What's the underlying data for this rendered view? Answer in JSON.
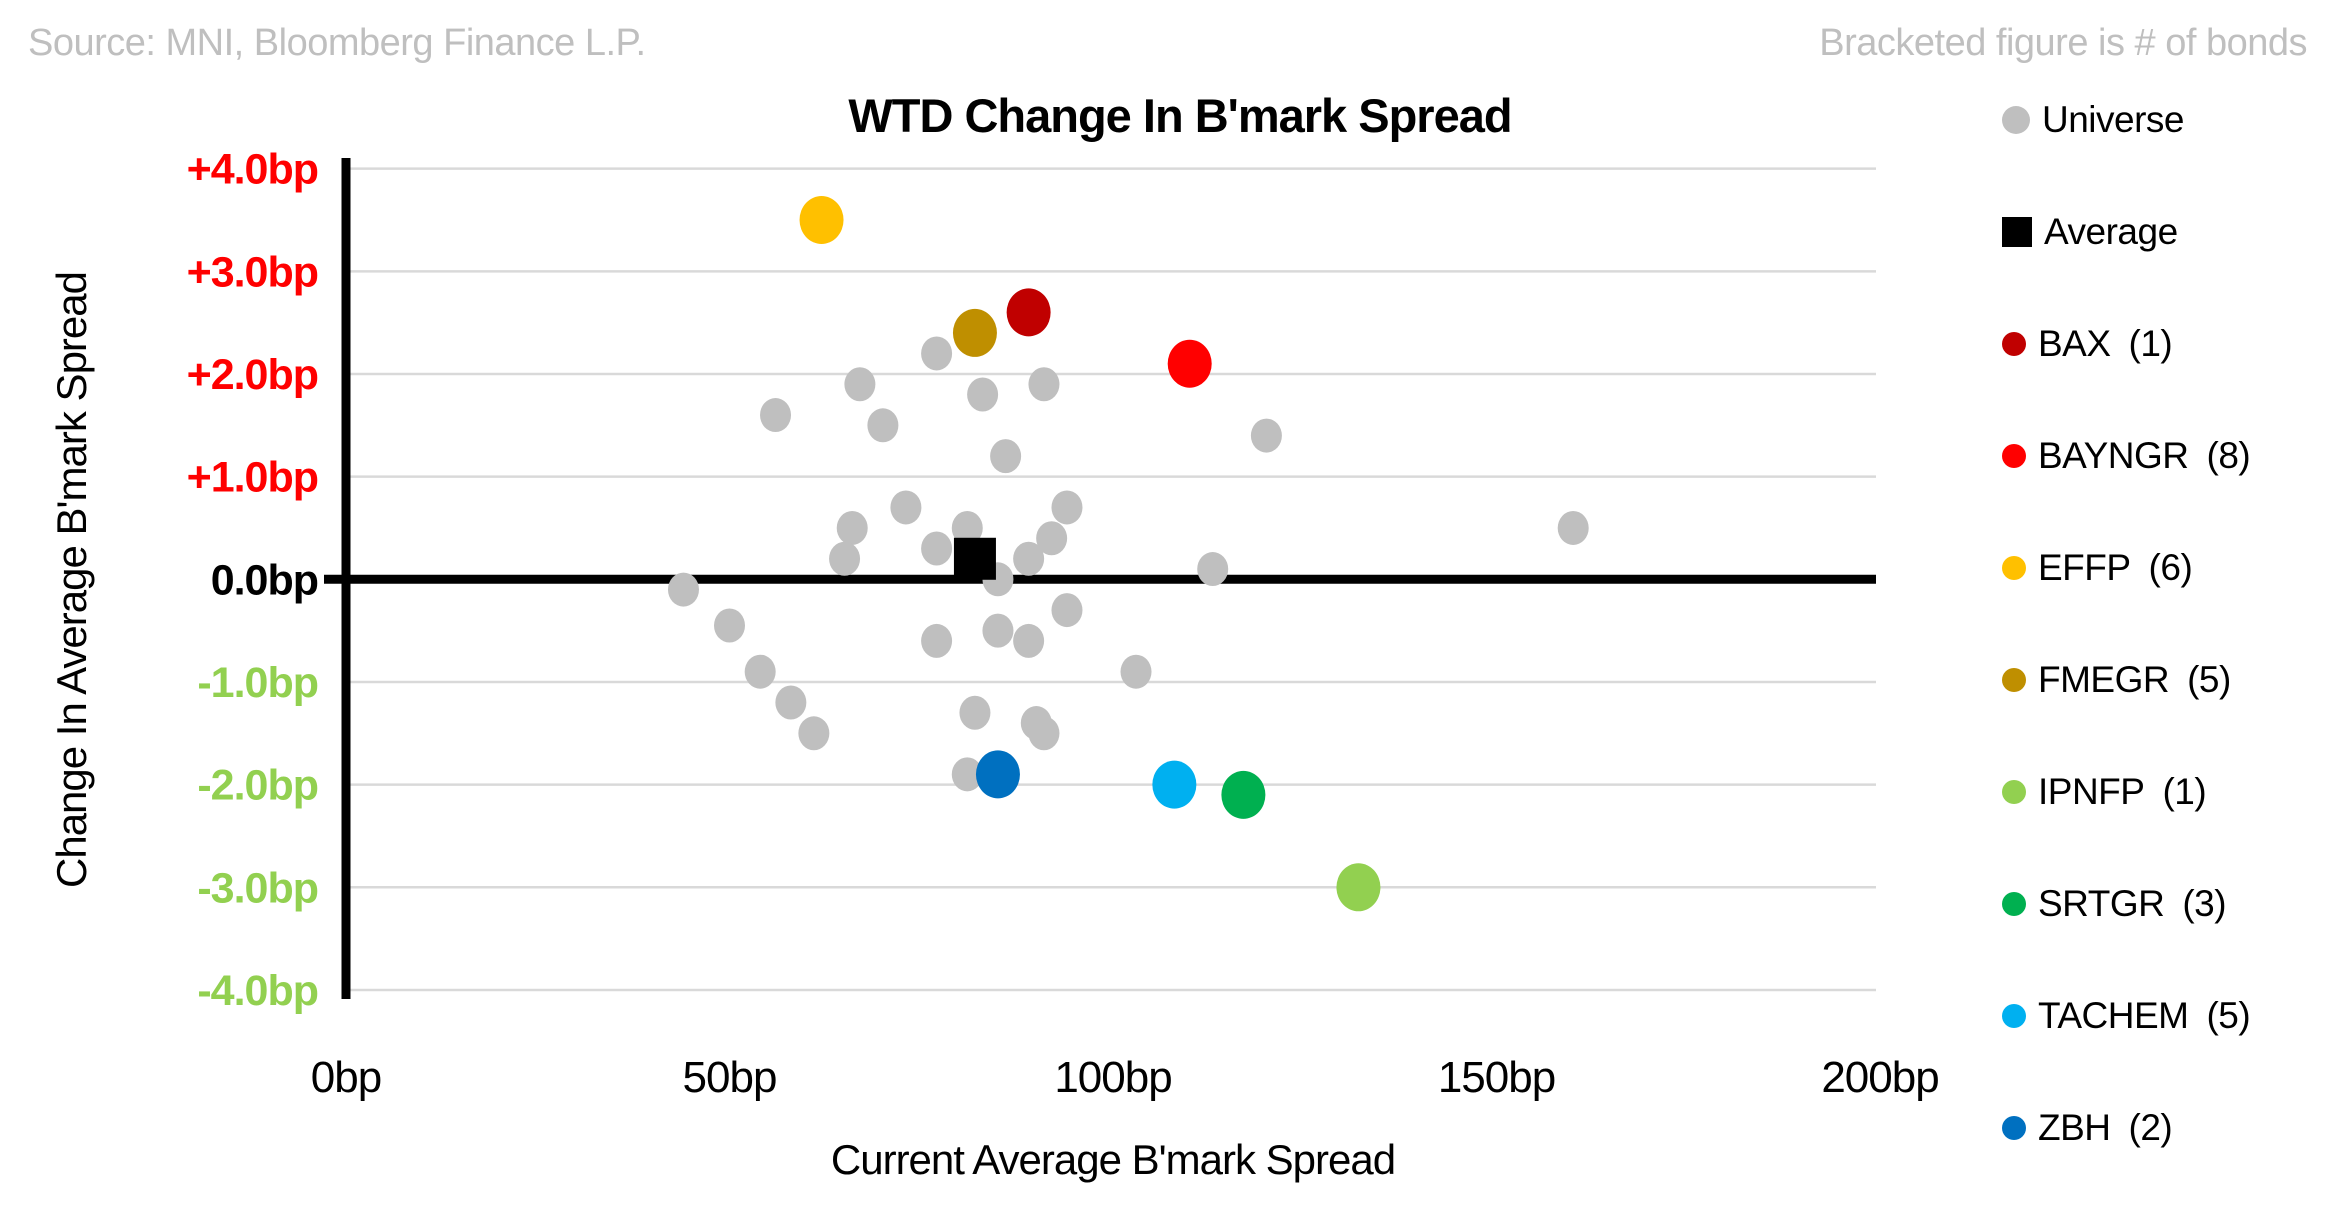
{
  "notes": {
    "source": "Source: MNI, Bloomberg Finance L.P.",
    "bracket": "Bracketed figure is # of bonds"
  },
  "chart_data": {
    "type": "scatter",
    "title": "WTD Change In B'mark Spread",
    "xlabel": "Current Average B'mark Spread",
    "ylabel": "Change In Average B'mark Spread",
    "x_unit": "bp",
    "y_unit": "bp",
    "xlim": [
      0,
      200
    ],
    "ylim": [
      -4,
      4
    ],
    "x_ticks": [
      0,
      50,
      100,
      150,
      200
    ],
    "y_ticks": [
      4,
      3,
      2,
      1,
      0,
      -1,
      -2,
      -3,
      -4
    ],
    "grid": "horizontal-only",
    "legend_position": "right",
    "tick_colors": {
      "positive": "#ff0000",
      "zero": "#000000",
      "negative": "#92d050"
    },
    "gridline_color": "#d9d9d9",
    "axis_color": "#000000",
    "series": [
      {
        "name": "Universe",
        "legend_count": "",
        "marker": "circle",
        "size": "small",
        "color": "#bfbfbf",
        "points": [
          [
            44,
            -0.1
          ],
          [
            50,
            -0.45
          ],
          [
            54,
            -0.9
          ],
          [
            58,
            -1.2
          ],
          [
            61,
            -1.5
          ],
          [
            56,
            1.6
          ],
          [
            67,
            1.9
          ],
          [
            70,
            1.5
          ],
          [
            77,
            2.2
          ],
          [
            83,
            1.8
          ],
          [
            91,
            1.9
          ],
          [
            86,
            1.2
          ],
          [
            73,
            0.7
          ],
          [
            94,
            0.7
          ],
          [
            66,
            0.5
          ],
          [
            81,
            0.5
          ],
          [
            92,
            0.4
          ],
          [
            77,
            0.3
          ],
          [
            65,
            0.2
          ],
          [
            89,
            0.2
          ],
          [
            85,
            0.0
          ],
          [
            94,
            -0.3
          ],
          [
            85,
            -0.5
          ],
          [
            77,
            -0.6
          ],
          [
            89,
            -0.6
          ],
          [
            82,
            -1.3
          ],
          [
            90,
            -1.4
          ],
          [
            91,
            -1.5
          ],
          [
            81,
            -1.9
          ],
          [
            103,
            -0.9
          ],
          [
            113,
            0.1
          ],
          [
            120,
            1.4
          ],
          [
            160,
            0.5
          ]
        ]
      },
      {
        "name": "Average",
        "legend_count": "",
        "marker": "square",
        "size": "large",
        "color": "#000000",
        "points": [
          [
            82,
            0.2
          ]
        ]
      },
      {
        "name": "BAX",
        "legend_count": "(1)",
        "marker": "circle",
        "size": "large",
        "color": "#c00000",
        "points": [
          [
            89,
            2.6
          ]
        ]
      },
      {
        "name": "BAYNGR",
        "legend_count": "(8)",
        "marker": "circle",
        "size": "large",
        "color": "#ff0000",
        "points": [
          [
            110,
            2.1
          ]
        ]
      },
      {
        "name": "EFFP",
        "legend_count": "(6)",
        "marker": "circle",
        "size": "large",
        "color": "#ffc000",
        "points": [
          [
            62,
            3.5
          ]
        ]
      },
      {
        "name": "FMEGR",
        "legend_count": "(5)",
        "marker": "circle",
        "size": "large",
        "color": "#bf8f00",
        "points": [
          [
            82,
            2.4
          ]
        ]
      },
      {
        "name": "IPNFP",
        "legend_count": "(1)",
        "marker": "circle",
        "size": "large",
        "color": "#92d050",
        "points": [
          [
            132,
            -3.0
          ]
        ]
      },
      {
        "name": "SRTGR",
        "legend_count": "(3)",
        "marker": "circle",
        "size": "large",
        "color": "#00b050",
        "points": [
          [
            117,
            -2.1
          ]
        ]
      },
      {
        "name": "TACHEM",
        "legend_count": "(5)",
        "marker": "circle",
        "size": "large",
        "color": "#00b0f0",
        "points": [
          [
            108,
            -2.0
          ]
        ]
      },
      {
        "name": "ZBH",
        "legend_count": "(2)",
        "marker": "circle",
        "size": "large",
        "color": "#0070c0",
        "points": [
          [
            85,
            -1.9
          ]
        ]
      }
    ]
  }
}
